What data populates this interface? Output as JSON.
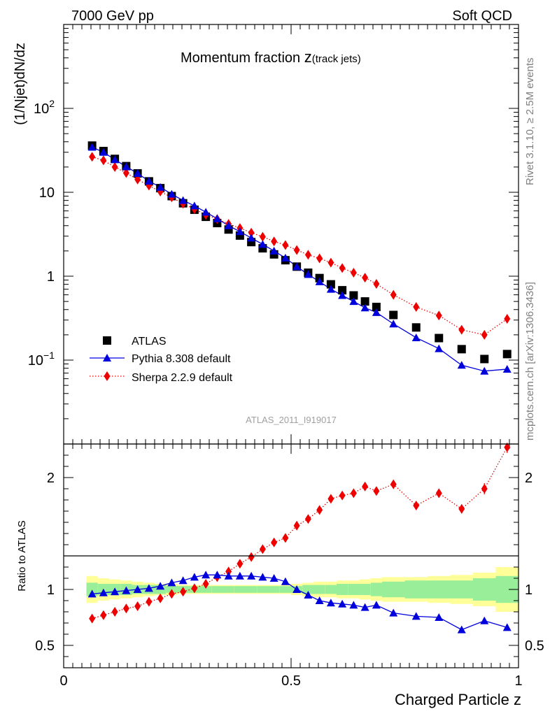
{
  "header": {
    "left": "7000 GeV pp",
    "right": "Soft QCD"
  },
  "title_main": "Momentum fraction ",
  "title_z": "z",
  "title_sub": "(track jets)",
  "analysis_id": "ATLAS_2011_I919017",
  "side_text_top": "Rivet 3.1.10, ≥ 2.5M events",
  "side_text_bottom": "mcplots.cern.ch [arXiv:1306.3436]",
  "colors": {
    "atlas": "#000000",
    "pythia": "#0000dd",
    "sherpa": "#ee0000",
    "band_outer": "#ffff99",
    "band_inner": "#99ee99"
  },
  "chart_data": [
    {
      "type": "scatter",
      "title": "",
      "xlabel": "Charged Particle z",
      "ylabel": "(1/Njet)dN/dz",
      "yscale": "log",
      "xlim": [
        0,
        1
      ],
      "ylim": [
        0.01,
        1000
      ],
      "x_ticks": [
        "0",
        "0.5",
        "1"
      ],
      "y_ticks": [
        {
          "base": "10",
          "exp": "−1",
          "value": 0.1
        },
        {
          "base": "1",
          "exp": "",
          "value": 1
        },
        {
          "base": "10",
          "exp": "",
          "value": 10
        },
        {
          "base": "10",
          "exp": "2",
          "value": 100
        }
      ],
      "legend_position": "bottom-left",
      "x": [
        0.0625,
        0.0875,
        0.1125,
        0.1375,
        0.1625,
        0.1875,
        0.2125,
        0.2375,
        0.2625,
        0.2875,
        0.3125,
        0.3375,
        0.3625,
        0.3875,
        0.4125,
        0.4375,
        0.4625,
        0.4875,
        0.5125,
        0.5375,
        0.5625,
        0.5875,
        0.6125,
        0.6375,
        0.6625,
        0.6875,
        0.725,
        0.775,
        0.825,
        0.875,
        0.925,
        0.975
      ],
      "series": [
        {
          "name": "ATLAS",
          "marker": "square",
          "values": [
            36,
            31,
            25,
            20.5,
            16.8,
            13.5,
            11.2,
            9.0,
            7.4,
            6.2,
            5.1,
            4.3,
            3.6,
            3.05,
            2.55,
            2.15,
            1.82,
            1.55,
            1.3,
            1.1,
            0.95,
            0.8,
            0.68,
            0.59,
            0.5,
            0.43,
            0.345,
            0.245,
            0.183,
            0.135,
            0.103,
            0.118
          ]
        },
        {
          "name": "Pythia 8.308 default",
          "marker": "triangle",
          "line": "solid",
          "values": [
            34.5,
            30,
            24.5,
            20.2,
            16.8,
            13.6,
            11.5,
            9.5,
            8.0,
            6.9,
            5.8,
            4.85,
            4.0,
            3.4,
            2.85,
            2.4,
            2.0,
            1.65,
            1.3,
            1.05,
            0.86,
            0.7,
            0.59,
            0.5,
            0.42,
            0.37,
            0.27,
            0.185,
            0.137,
            0.087,
            0.074,
            0.078
          ]
        },
        {
          "name": "Sherpa 2.2.9 default",
          "marker": "diamond",
          "line": "dotted",
          "values": [
            26.5,
            24,
            20,
            17.0,
            14.2,
            12.0,
            10.2,
            8.7,
            7.3,
            6.3,
            5.4,
            4.8,
            4.2,
            3.75,
            3.3,
            2.95,
            2.6,
            2.35,
            2.05,
            1.8,
            1.63,
            1.45,
            1.25,
            1.1,
            0.96,
            0.81,
            0.6,
            0.43,
            0.34,
            0.23,
            0.2,
            0.31
          ]
        }
      ]
    },
    {
      "type": "scatter",
      "title": "",
      "xlabel": "Charged Particle z",
      "ylabel": "Ratio to ATLAS",
      "xlim": [
        0,
        1
      ],
      "ylim": [
        0.3,
        2.3
      ],
      "y_ticks": [
        "0.5",
        "1",
        "2"
      ],
      "reference_line": 1,
      "bins": [
        [
          0.05,
          0.075
        ],
        [
          0.075,
          0.1
        ],
        [
          0.1,
          0.125
        ],
        [
          0.125,
          0.15
        ],
        [
          0.15,
          0.175
        ],
        [
          0.175,
          0.2
        ],
        [
          0.2,
          0.225
        ],
        [
          0.225,
          0.25
        ],
        [
          0.25,
          0.275
        ],
        [
          0.275,
          0.3
        ],
        [
          0.3,
          0.325
        ],
        [
          0.325,
          0.35
        ],
        [
          0.35,
          0.375
        ],
        [
          0.375,
          0.4
        ],
        [
          0.4,
          0.425
        ],
        [
          0.425,
          0.45
        ],
        [
          0.45,
          0.475
        ],
        [
          0.475,
          0.5
        ],
        [
          0.5,
          0.525
        ],
        [
          0.525,
          0.55
        ],
        [
          0.55,
          0.575
        ],
        [
          0.575,
          0.6
        ],
        [
          0.6,
          0.625
        ],
        [
          0.625,
          0.65
        ],
        [
          0.65,
          0.675
        ],
        [
          0.675,
          0.7
        ],
        [
          0.7,
          0.75
        ],
        [
          0.75,
          0.8
        ],
        [
          0.8,
          0.85
        ],
        [
          0.85,
          0.9
        ],
        [
          0.9,
          0.95
        ],
        [
          0.95,
          1.0
        ]
      ],
      "band_inner": [
        0.06,
        0.05,
        0.05,
        0.05,
        0.04,
        0.04,
        0.04,
        0.03,
        0.03,
        0.03,
        0.03,
        0.03,
        0.03,
        0.03,
        0.03,
        0.03,
        0.03,
        0.03,
        0.03,
        0.04,
        0.04,
        0.04,
        0.05,
        0.05,
        0.05,
        0.06,
        0.07,
        0.08,
        0.08,
        0.08,
        0.1,
        0.12
      ],
      "band_outer": [
        0.12,
        0.1,
        0.09,
        0.08,
        0.07,
        0.06,
        0.05,
        0.05,
        0.04,
        0.04,
        0.04,
        0.04,
        0.04,
        0.04,
        0.04,
        0.04,
        0.04,
        0.04,
        0.05,
        0.06,
        0.07,
        0.07,
        0.08,
        0.08,
        0.09,
        0.1,
        0.11,
        0.11,
        0.12,
        0.13,
        0.15,
        0.2
      ],
      "series": [
        {
          "name": "Pythia 8.308 default",
          "values": [
            0.96,
            0.97,
            0.98,
            0.99,
            1.0,
            1.01,
            1.03,
            1.06,
            1.08,
            1.11,
            1.13,
            1.13,
            1.12,
            1.12,
            1.12,
            1.11,
            1.1,
            1.07,
            1.0,
            0.95,
            0.9,
            0.88,
            0.87,
            0.86,
            0.84,
            0.86,
            0.79,
            0.76,
            0.75,
            0.64,
            0.72,
            0.66
          ],
          "errors": [
            0.01,
            0.01,
            0.01,
            0.01,
            0.01,
            0.01,
            0.01,
            0.01,
            0.01,
            0.01,
            0.01,
            0.01,
            0.01,
            0.01,
            0.01,
            0.01,
            0.01,
            0.01,
            0.01,
            0.01,
            0.015,
            0.015,
            0.015,
            0.02,
            0.02,
            0.02,
            0.02,
            0.02,
            0.03,
            0.03,
            0.03,
            0.03
          ]
        },
        {
          "name": "Sherpa 2.2.9 default",
          "values": [
            0.74,
            0.77,
            0.8,
            0.83,
            0.85,
            0.89,
            0.92,
            0.96,
            0.98,
            1.01,
            1.05,
            1.11,
            1.16,
            1.23,
            1.29,
            1.36,
            1.42,
            1.46,
            1.57,
            1.63,
            1.71,
            1.81,
            1.84,
            1.86,
            1.92,
            1.88,
            1.94,
            1.75,
            1.86,
            1.72,
            1.9,
            2.27
          ],
          "errors": [
            0.01,
            0.01,
            0.01,
            0.01,
            0.01,
            0.01,
            0.01,
            0.01,
            0.01,
            0.01,
            0.01,
            0.01,
            0.01,
            0.01,
            0.01,
            0.01,
            0.01,
            0.01,
            0.02,
            0.02,
            0.02,
            0.02,
            0.02,
            0.03,
            0.03,
            0.03,
            0.03,
            0.03,
            0.04,
            0.04,
            0.05,
            0.05
          ]
        }
      ]
    }
  ]
}
